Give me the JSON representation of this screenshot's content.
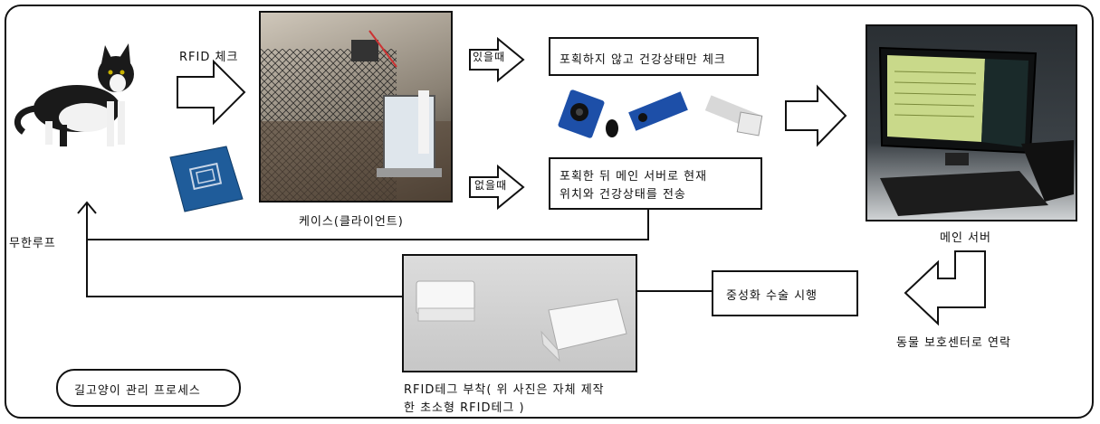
{
  "labels": {
    "rfid_check": "RFID 체크",
    "case_client": "케이스(클라이언트)",
    "present": "있을때",
    "absent": "없을때",
    "main_server": "메인 서버",
    "infinite_loop": "무한루프",
    "contact_center": "동물 보호센터로 연락",
    "tag_attach_line1": "RFID테그 부착( 위 사진은 자체 제작",
    "tag_attach_line2": "한 초소형 RFID테그 )"
  },
  "boxes": {
    "present_action": "포획하지 않고 건강상태만 체크",
    "absent_action_line1": "포획한 뒤 메인 서버로 현재",
    "absent_action_line2": "위치와 건강상태를 전송",
    "neuter": "중성화 수술 시행",
    "title": "길고양이 관리 프로세스"
  },
  "colors": {
    "line": "#111111",
    "sensor_blue": "#1d4fa8",
    "rfid_blue": "#1f5c9a",
    "screen_green": "#c9d98a",
    "tag_white": "#f4f4f4"
  }
}
